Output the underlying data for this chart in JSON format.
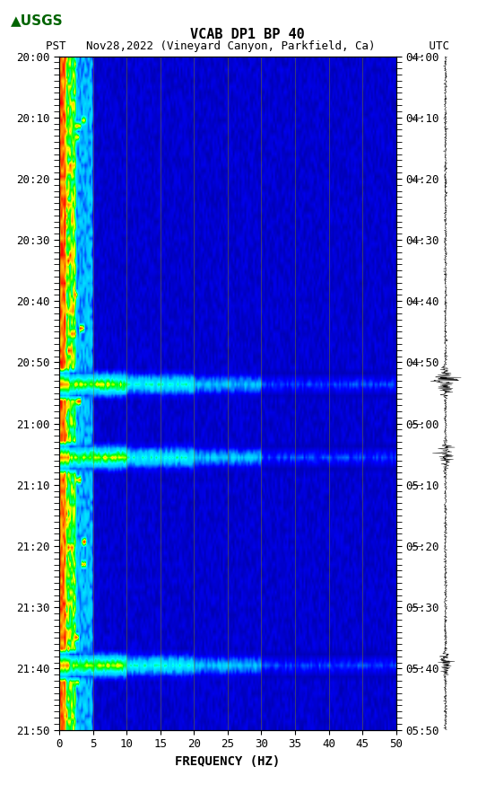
{
  "title_line1": "VCAB DP1 BP 40",
  "title_line2": "PST   Nov28,2022 (Vineyard Canyon, Parkfield, Ca)        UTC",
  "xlabel": "FREQUENCY (HZ)",
  "left_yticks": [
    "20:00",
    "20:10",
    "20:20",
    "20:30",
    "20:40",
    "20:50",
    "21:00",
    "21:10",
    "21:20",
    "21:30",
    "21:40",
    "21:50"
  ],
  "right_yticks": [
    "04:00",
    "04:10",
    "04:20",
    "04:30",
    "04:40",
    "04:50",
    "05:00",
    "05:10",
    "05:20",
    "05:30",
    "05:40",
    "05:50"
  ],
  "xticks": [
    0,
    5,
    10,
    15,
    20,
    25,
    30,
    35,
    40,
    45,
    50
  ],
  "freq_max": 50,
  "time_steps": 120,
  "freq_bins": 200,
  "background_color": "#ffffff",
  "spectrogram_bg": "#00008B",
  "event_times": [
    58,
    71,
    108
  ],
  "event_amplitudes": [
    3.0,
    2.0,
    1.5
  ]
}
